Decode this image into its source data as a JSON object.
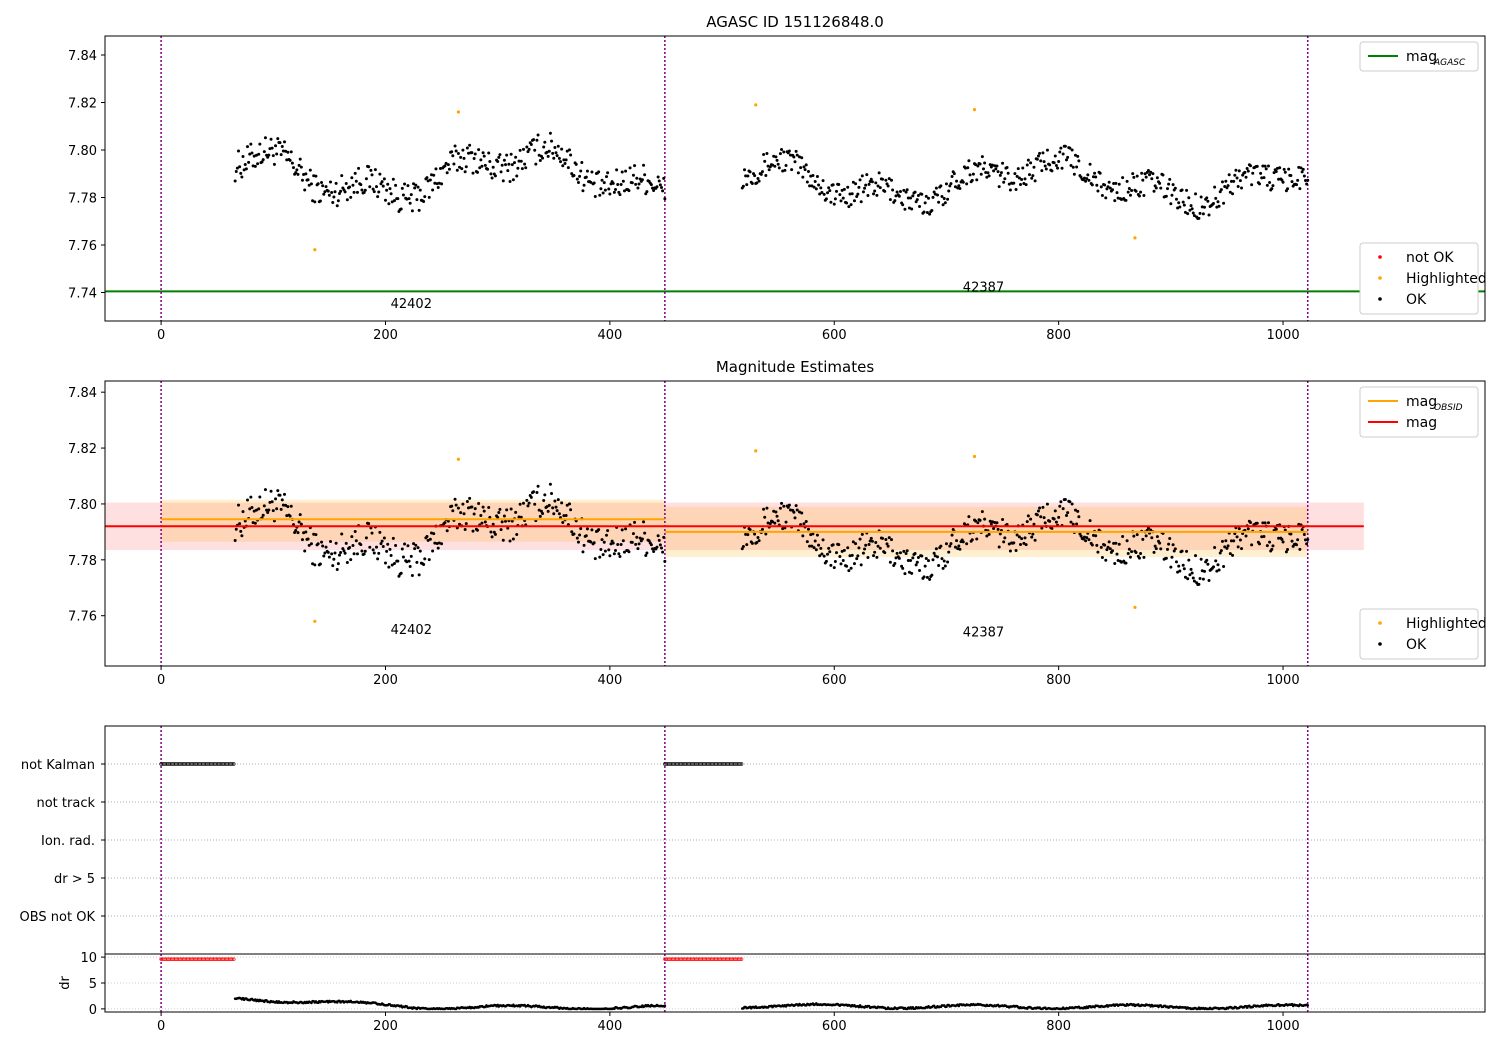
{
  "chart_data": [
    {
      "type": "scatter",
      "title": "AGASC ID 151126848.0",
      "xlim": [
        -50,
        1180
      ],
      "ylim": [
        7.728,
        7.848
      ],
      "x_ticks": [
        0,
        200,
        400,
        600,
        800,
        1000
      ],
      "y_ticks": [
        7.74,
        7.76,
        7.78,
        7.8,
        7.82,
        7.84
      ],
      "x_tick_labels": [
        "0",
        "200",
        "400",
        "600",
        "800",
        "1000"
      ],
      "y_tick_labels": [
        "7.74",
        "7.76",
        "7.78",
        "7.80",
        "7.82",
        "7.84"
      ],
      "hlines": [
        {
          "name": "mag_AGASC",
          "y": 7.7405,
          "x_range": [
            -50,
            1180
          ],
          "color": "#008000"
        }
      ],
      "vlines": [
        0,
        449,
        1022
      ],
      "segments": [
        {
          "x0": 66,
          "x1": 449,
          "base": 7.79,
          "amp": 0.014,
          "phase": 0.0
        },
        {
          "x0": 518,
          "x1": 1022,
          "base": 7.787,
          "amp": 0.012,
          "phase": 1.3
        }
      ],
      "highlighted_points": [
        {
          "x": 137,
          "y": 7.758
        },
        {
          "x": 265,
          "y": 7.816
        },
        {
          "x": 530,
          "y": 7.819
        },
        {
          "x": 725,
          "y": 7.817
        },
        {
          "x": 868,
          "y": 7.763
        }
      ],
      "obsid_annotations": [
        {
          "label": "42402",
          "x": 223,
          "y": 7.7335
        },
        {
          "label": "42387",
          "x": 733,
          "y": 7.7405
        }
      ],
      "legends": [
        {
          "position": "top-right",
          "entries": [
            {
              "label": "mag",
              "sub": "AGASC",
              "color": "#008000",
              "kind": "line"
            }
          ]
        },
        {
          "position": "bottom-right",
          "entries": [
            {
              "label": "not OK",
              "color": "#ff0000",
              "kind": "dot"
            },
            {
              "label": "Highlighted",
              "color": "#ffa500",
              "kind": "dot"
            },
            {
              "label": "OK",
              "color": "#000000",
              "kind": "dot"
            }
          ]
        }
      ]
    },
    {
      "type": "scatter",
      "title": "Magnitude Estimates",
      "xlim": [
        -50,
        1180
      ],
      "ylim": [
        7.742,
        7.844
      ],
      "x_ticks": [
        0,
        200,
        400,
        600,
        800,
        1000
      ],
      "y_ticks": [
        7.76,
        7.78,
        7.8,
        7.82,
        7.84
      ],
      "x_tick_labels": [
        "0",
        "200",
        "400",
        "600",
        "800",
        "1000"
      ],
      "y_tick_labels": [
        "7.76",
        "7.78",
        "7.80",
        "7.82",
        "7.84"
      ],
      "mag": {
        "y": 7.792,
        "band": [
          7.7835,
          7.8005
        ],
        "x_range": [
          -50,
          1072
        ],
        "color": "#ff0000"
      },
      "mag_obsid": [
        {
          "x0": 0,
          "x1": 449,
          "y": 7.7945,
          "band": [
            7.7865,
            7.8015
          ]
        },
        {
          "x0": 449,
          "x1": 1022,
          "y": 7.79,
          "band": [
            7.781,
            7.799
          ]
        }
      ],
      "vlines": [
        0,
        449,
        1022
      ],
      "segments": [
        {
          "x0": 66,
          "x1": 449,
          "base": 7.79,
          "amp": 0.014,
          "phase": 0.0
        },
        {
          "x0": 518,
          "x1": 1022,
          "base": 7.787,
          "amp": 0.012,
          "phase": 1.3
        }
      ],
      "highlighted_points": [
        {
          "x": 137,
          "y": 7.758
        },
        {
          "x": 265,
          "y": 7.816
        },
        {
          "x": 530,
          "y": 7.819
        },
        {
          "x": 725,
          "y": 7.817
        },
        {
          "x": 868,
          "y": 7.763
        }
      ],
      "obsid_annotations": [
        {
          "label": "42402",
          "x": 223,
          "y": 7.7535
        },
        {
          "label": "42387",
          "x": 733,
          "y": 7.7525
        }
      ],
      "legends": [
        {
          "position": "top-right",
          "entries": [
            {
              "label": "mag",
              "sub": "OBSID",
              "color": "#ffa500",
              "kind": "line"
            },
            {
              "label": "mag",
              "sub": "",
              "color": "#ff0000",
              "kind": "line"
            }
          ]
        },
        {
          "position": "bottom-right",
          "entries": [
            {
              "label": "Highlighted",
              "color": "#ffa500",
              "kind": "dot"
            },
            {
              "label": "OK",
              "color": "#000000",
              "kind": "dot"
            }
          ]
        }
      ]
    },
    {
      "type": "scatter",
      "title": "",
      "xlim": [
        -50,
        1180
      ],
      "flag_rows": [
        "not Kalman",
        "not track",
        "Ion. rad.",
        "dr > 5",
        "OBS not OK"
      ],
      "flag_ranges": [
        {
          "row": "not Kalman",
          "x0": 0,
          "x1": 66
        },
        {
          "row": "not Kalman",
          "x0": 449,
          "x1": 518
        }
      ],
      "vlines": [
        0,
        449,
        1022
      ]
    },
    {
      "type": "scatter",
      "title": "",
      "ylabel": "dr",
      "xlim": [
        -50,
        1180
      ],
      "ylim": [
        -0.6,
        10.6
      ],
      "x_ticks": [
        0,
        200,
        400,
        600,
        800,
        1000
      ],
      "y_ticks": [
        0,
        5,
        10
      ],
      "x_tick_labels": [
        "0",
        "200",
        "400",
        "600",
        "800",
        "1000"
      ],
      "y_tick_labels": [
        "0",
        "5",
        "10"
      ],
      "clipped_points": [
        {
          "x0": 0,
          "x1": 66,
          "y": 9.6,
          "color": "#ff0000"
        },
        {
          "x0": 449,
          "x1": 518,
          "y": 9.6,
          "color": "#ff0000"
        }
      ],
      "dr_segments": [
        {
          "x0": 66,
          "x1": 449,
          "start": 2.1,
          "end": 0.3
        },
        {
          "x0": 518,
          "x1": 1022,
          "start": 0.6,
          "end": 0.4
        }
      ],
      "vlines": [
        0,
        449,
        1022
      ]
    }
  ]
}
